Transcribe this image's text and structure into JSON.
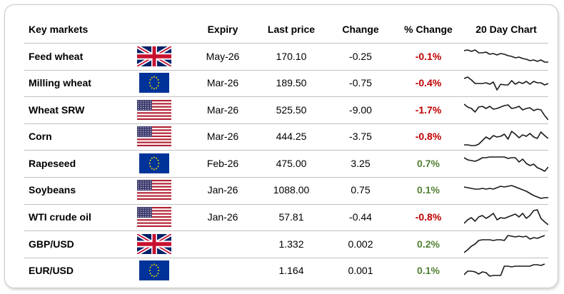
{
  "header": {
    "name": "Key markets",
    "expiry": "Expiry",
    "last": "Last price",
    "change": "Change",
    "pct": "% Change",
    "chart": "20 Day Chart"
  },
  "colors": {
    "negative": "#c00000",
    "positive": "#538135"
  },
  "rows": [
    {
      "name": "Feed wheat",
      "flag": "uk-flag-icon",
      "expiry": "May-26",
      "last": "170.10",
      "change": "-0.25",
      "pct": "-0.1%",
      "dir": "neg",
      "spark": [
        8,
        7,
        9,
        7,
        11,
        11,
        10,
        13,
        12,
        14,
        12,
        13,
        15,
        16,
        18,
        17,
        19,
        20,
        22,
        21,
        23,
        21,
        24,
        24
      ]
    },
    {
      "name": "Milling wheat",
      "flag": "eu-flag-icon",
      "expiry": "Mar-26",
      "last": "189.50",
      "change": "-0.75",
      "pct": "-0.4%",
      "dir": "neg",
      "spark": [
        10,
        8,
        12,
        17,
        17,
        17,
        16,
        18,
        15,
        26,
        18,
        19,
        19,
        13,
        18,
        15,
        17,
        14,
        18,
        14,
        16,
        16,
        19,
        17
      ]
    },
    {
      "name": "Wheat SRW",
      "flag": "us-flag-icon",
      "expiry": "Mar-26",
      "last": "525.50",
      "change": "-9.00",
      "pct": "-1.7%",
      "dir": "neg",
      "spark": [
        8,
        12,
        14,
        19,
        12,
        11,
        14,
        11,
        15,
        14,
        12,
        10,
        9,
        14,
        13,
        11,
        16,
        14,
        13,
        17,
        15,
        16,
        24,
        30
      ]
    },
    {
      "name": "Corn",
      "flag": "us-flag-icon",
      "expiry": "Mar-26",
      "last": "444.25",
      "change": "-3.75",
      "pct": "-0.8%",
      "dir": "neg",
      "spark": [
        28,
        28,
        29,
        29,
        27,
        22,
        17,
        20,
        15,
        17,
        16,
        13,
        20,
        9,
        13,
        18,
        14,
        16,
        12,
        17,
        19,
        10,
        15,
        19
      ]
    },
    {
      "name": "Rapeseed",
      "flag": "eu-flag-icon",
      "expiry": "Feb-26",
      "last": "475.00",
      "change": "3.25",
      "pct": "0.7%",
      "dir": "pos",
      "spark": [
        8,
        11,
        12,
        13,
        11,
        8,
        8,
        7,
        7,
        7,
        7,
        7,
        9,
        8,
        8,
        14,
        10,
        16,
        19,
        17,
        22,
        24,
        27,
        21
      ]
    },
    {
      "name": "Soybeans",
      "flag": "us-flag-icon",
      "expiry": "Jan-26",
      "last": "1088.00",
      "change": "0.75",
      "pct": "0.1%",
      "dir": "pos",
      "spark": [
        12,
        13,
        14,
        15,
        15,
        14,
        15,
        14,
        15,
        13,
        11,
        12,
        11,
        10,
        12,
        14,
        16,
        18,
        21,
        24,
        26,
        28,
        27,
        27
      ]
    },
    {
      "name": "WTI crude oil",
      "flag": "us-flag-icon",
      "expiry": "Jan-26",
      "last": "57.81",
      "change": "-0.44",
      "pct": "-0.8%",
      "dir": "neg",
      "spark": [
        25,
        20,
        17,
        22,
        16,
        14,
        18,
        15,
        11,
        20,
        17,
        18,
        16,
        14,
        12,
        16,
        11,
        18,
        14,
        7,
        6,
        18,
        23,
        27
      ]
    },
    {
      "name": "GBP/USD",
      "flag": "uk-flag-icon",
      "expiry": "",
      "last": "1.332",
      "change": "0.002",
      "pct": "0.2%",
      "dir": "pos",
      "spark": [
        28,
        24,
        19,
        16,
        11,
        10,
        10,
        10,
        11,
        10,
        10,
        11,
        4,
        5,
        6,
        5,
        6,
        5,
        9,
        7,
        8,
        6,
        4,
        null
      ]
    },
    {
      "name": "EUR/USD",
      "flag": "eu-flag-icon",
      "expiry": "",
      "last": "1.164",
      "change": "0.001",
      "pct": "0.1%",
      "dir": "pos",
      "spark": [
        22,
        17,
        17,
        18,
        21,
        18,
        19,
        24,
        23,
        23,
        23,
        10,
        10,
        11,
        10,
        10,
        10,
        10,
        10,
        8,
        8,
        9,
        7,
        null
      ]
    }
  ]
}
